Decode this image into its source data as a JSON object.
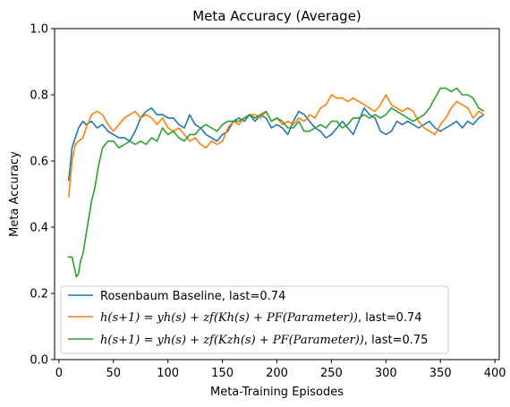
{
  "chart_data": {
    "type": "line",
    "title": "Meta Accuracy (Average)",
    "xlabel": "Meta-Training Episodes",
    "ylabel": "Meta Accuracy",
    "xlim": [
      -4,
      404
    ],
    "ylim": [
      0.0,
      1.0
    ],
    "xticks": [
      0,
      50,
      100,
      150,
      200,
      250,
      300,
      350,
      400
    ],
    "yticks": [
      0.0,
      0.2,
      0.4,
      0.6,
      0.8,
      1.0
    ],
    "xtick_labels": [
      "0",
      "50",
      "100",
      "150",
      "200",
      "250",
      "300",
      "350",
      "400"
    ],
    "ytick_labels": [
      "0.0",
      "0.2",
      "0.4",
      "0.6",
      "0.8",
      "1.0"
    ],
    "grid": false,
    "legend_position": "lower-left",
    "series": [
      {
        "name": "Rosenbaum Baseline, last=0.74",
        "color": "#1f77b4",
        "x": [
          9,
          12,
          15,
          18,
          22,
          25,
          30,
          35,
          40,
          45,
          50,
          55,
          60,
          65,
          70,
          75,
          80,
          85,
          90,
          95,
          100,
          105,
          110,
          115,
          120,
          125,
          130,
          135,
          140,
          145,
          150,
          155,
          160,
          165,
          170,
          175,
          180,
          185,
          190,
          195,
          200,
          205,
          210,
          215,
          220,
          225,
          230,
          235,
          240,
          245,
          250,
          255,
          260,
          265,
          270,
          275,
          280,
          285,
          290,
          295,
          300,
          305,
          310,
          315,
          320,
          325,
          330,
          335,
          340,
          345,
          350,
          355,
          360,
          365,
          370,
          375,
          380,
          385,
          390
        ],
        "y": [
          0.54,
          0.64,
          0.67,
          0.7,
          0.72,
          0.71,
          0.72,
          0.7,
          0.71,
          0.69,
          0.68,
          0.67,
          0.67,
          0.66,
          0.69,
          0.73,
          0.75,
          0.76,
          0.74,
          0.74,
          0.73,
          0.73,
          0.71,
          0.7,
          0.74,
          0.71,
          0.7,
          0.68,
          0.67,
          0.66,
          0.68,
          0.69,
          0.72,
          0.73,
          0.72,
          0.74,
          0.72,
          0.74,
          0.73,
          0.7,
          0.71,
          0.7,
          0.68,
          0.72,
          0.75,
          0.74,
          0.72,
          0.7,
          0.69,
          0.67,
          0.68,
          0.7,
          0.72,
          0.7,
          0.68,
          0.72,
          0.76,
          0.74,
          0.73,
          0.69,
          0.68,
          0.69,
          0.72,
          0.71,
          0.72,
          0.71,
          0.7,
          0.71,
          0.72,
          0.7,
          0.69,
          0.7,
          0.71,
          0.72,
          0.7,
          0.72,
          0.71,
          0.73,
          0.74
        ]
      },
      {
        "name": "h(s+1)=yh(s)+zf(Kh(s)+PF(Parameter)), last=0.74",
        "color": "#ff7f0e",
        "x": [
          9,
          12,
          15,
          18,
          22,
          25,
          30,
          35,
          40,
          45,
          50,
          55,
          60,
          65,
          70,
          75,
          80,
          85,
          90,
          95,
          100,
          105,
          110,
          115,
          120,
          125,
          130,
          135,
          140,
          145,
          150,
          155,
          160,
          165,
          170,
          175,
          180,
          185,
          190,
          195,
          200,
          205,
          210,
          215,
          220,
          225,
          230,
          235,
          240,
          245,
          250,
          255,
          260,
          265,
          270,
          275,
          280,
          285,
          290,
          295,
          300,
          305,
          310,
          315,
          320,
          325,
          330,
          335,
          340,
          345,
          350,
          355,
          360,
          365,
          370,
          375,
          380,
          385,
          390
        ],
        "y": [
          0.49,
          0.6,
          0.65,
          0.66,
          0.67,
          0.7,
          0.74,
          0.75,
          0.74,
          0.71,
          0.69,
          0.71,
          0.73,
          0.74,
          0.75,
          0.73,
          0.74,
          0.73,
          0.71,
          0.73,
          0.7,
          0.69,
          0.7,
          0.68,
          0.66,
          0.67,
          0.65,
          0.64,
          0.66,
          0.65,
          0.66,
          0.7,
          0.72,
          0.71,
          0.73,
          0.74,
          0.74,
          0.73,
          0.75,
          0.72,
          0.73,
          0.71,
          0.72,
          0.71,
          0.73,
          0.72,
          0.74,
          0.73,
          0.76,
          0.77,
          0.8,
          0.79,
          0.79,
          0.78,
          0.79,
          0.78,
          0.77,
          0.76,
          0.75,
          0.77,
          0.8,
          0.77,
          0.76,
          0.75,
          0.76,
          0.75,
          0.72,
          0.7,
          0.69,
          0.68,
          0.71,
          0.73,
          0.76,
          0.78,
          0.77,
          0.76,
          0.73,
          0.75,
          0.74
        ]
      },
      {
        "name": "h(s+1)=yh(s)+zf(Kzh(s)+PF(Parameter)), last=0.75",
        "color": "#2ca02c",
        "x": [
          8,
          10,
          12,
          14,
          16,
          18,
          20,
          22,
          25,
          28,
          30,
          33,
          36,
          40,
          45,
          50,
          55,
          60,
          65,
          70,
          75,
          80,
          85,
          90,
          95,
          100,
          105,
          110,
          115,
          120,
          125,
          130,
          135,
          140,
          145,
          150,
          155,
          160,
          165,
          170,
          175,
          180,
          185,
          190,
          195,
          200,
          205,
          210,
          215,
          220,
          225,
          230,
          235,
          240,
          245,
          250,
          255,
          260,
          265,
          270,
          275,
          280,
          285,
          290,
          295,
          300,
          305,
          310,
          315,
          320,
          325,
          330,
          335,
          340,
          345,
          350,
          355,
          360,
          365,
          370,
          375,
          380,
          385,
          390
        ],
        "y": [
          0.31,
          0.31,
          0.31,
          0.28,
          0.25,
          0.26,
          0.3,
          0.32,
          0.38,
          0.44,
          0.48,
          0.52,
          0.58,
          0.64,
          0.66,
          0.66,
          0.64,
          0.65,
          0.66,
          0.65,
          0.66,
          0.65,
          0.67,
          0.66,
          0.7,
          0.68,
          0.69,
          0.67,
          0.66,
          0.68,
          0.68,
          0.7,
          0.71,
          0.7,
          0.69,
          0.71,
          0.72,
          0.72,
          0.72,
          0.73,
          0.74,
          0.73,
          0.74,
          0.75,
          0.72,
          0.73,
          0.72,
          0.7,
          0.7,
          0.72,
          0.69,
          0.69,
          0.7,
          0.71,
          0.7,
          0.72,
          0.72,
          0.7,
          0.71,
          0.73,
          0.73,
          0.74,
          0.73,
          0.74,
          0.73,
          0.74,
          0.76,
          0.75,
          0.74,
          0.73,
          0.72,
          0.73,
          0.74,
          0.76,
          0.79,
          0.82,
          0.82,
          0.81,
          0.82,
          0.8,
          0.8,
          0.79,
          0.76,
          0.75
        ]
      }
    ],
    "legend_entries": [
      {
        "math": "h(s+1) = yh(s) + zf(Kh(s) + PF(Parameter))",
        "suffix": ", last=0.74"
      },
      {
        "math": "h(s+1) = yh(s) + zf(Kzh(s) + PF(Parameter))",
        "suffix": ", last=0.75"
      }
    ]
  }
}
